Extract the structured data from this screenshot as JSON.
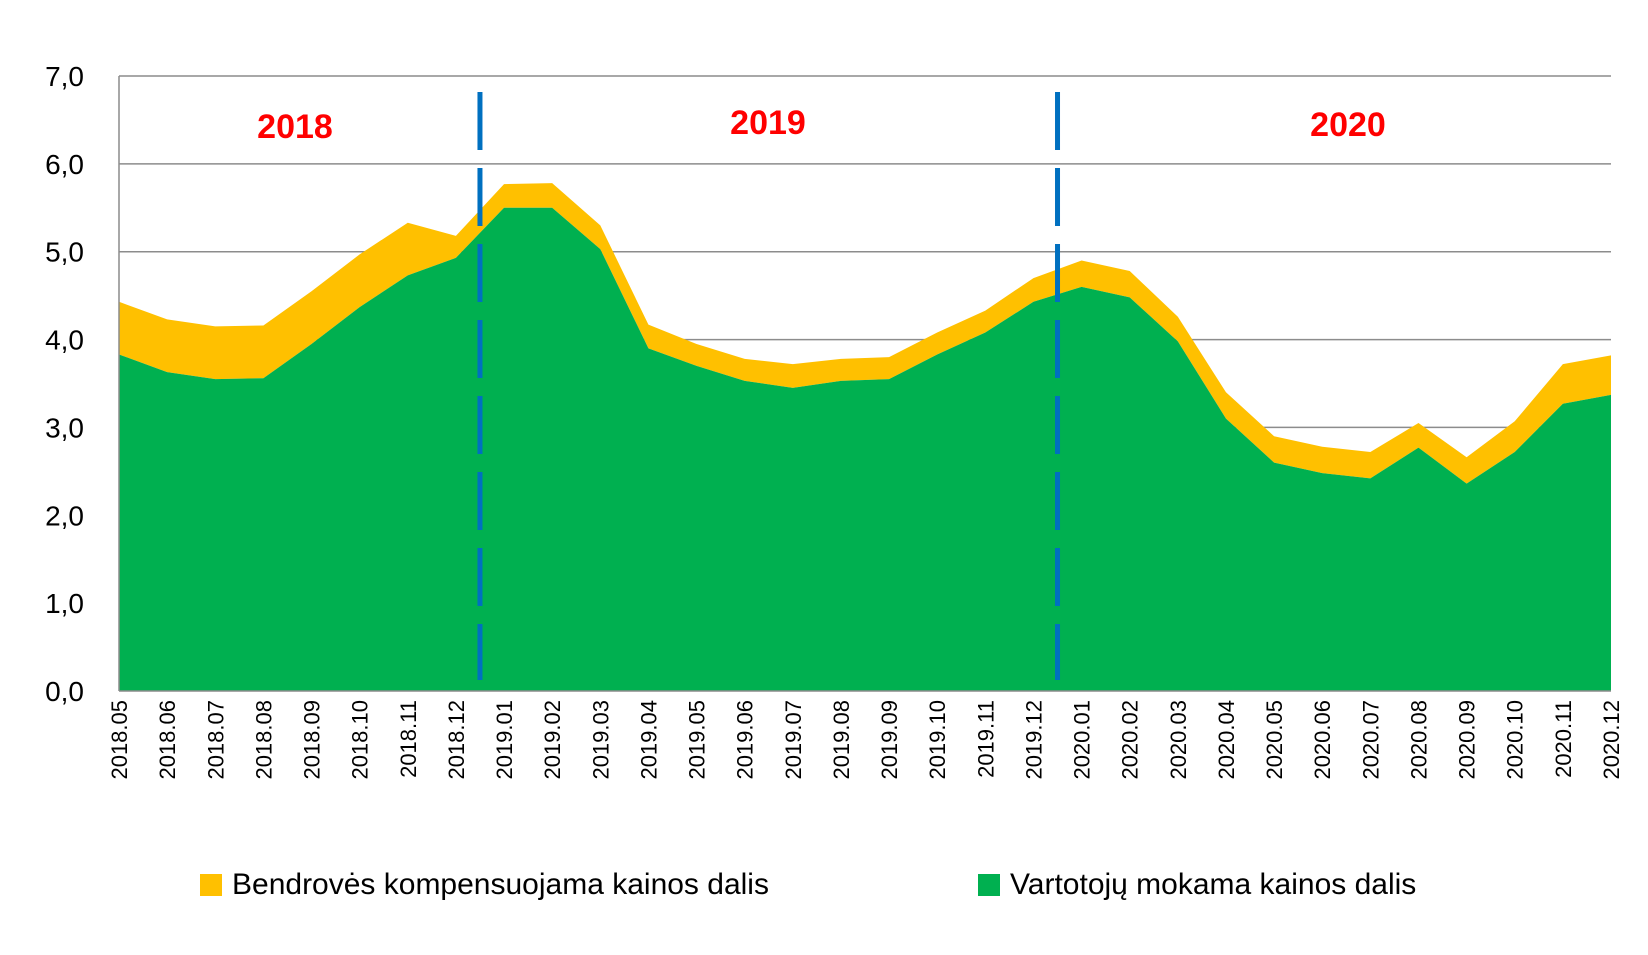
{
  "chart_data": {
    "type": "area",
    "stacked": true,
    "categories": [
      "2018.05",
      "2018.06",
      "2018.07",
      "2018.08",
      "2018.09",
      "2018.10",
      "2018.11",
      "2018.12",
      "2019.01",
      "2019.02",
      "2019.03",
      "2019.04",
      "2019.05",
      "2019.06",
      "2019.07",
      "2019.08",
      "2019.09",
      "2019.10",
      "2019.11",
      "2019.12",
      "2020.01",
      "2020.02",
      "2020.03",
      "2020.04",
      "2020.05",
      "2020.06",
      "2020.07",
      "2020.08",
      "2020.09",
      "2020.10",
      "2020.11",
      "2020.12"
    ],
    "series": [
      {
        "name": "Vartotojų mokama kainos dalis",
        "color": "#00b050",
        "values": [
          3.83,
          3.63,
          3.55,
          3.56,
          3.95,
          4.37,
          4.73,
          4.93,
          5.5,
          5.5,
          5.03,
          3.9,
          3.7,
          3.53,
          3.45,
          3.53,
          3.55,
          3.83,
          4.08,
          4.43,
          4.6,
          4.48,
          3.98,
          3.1,
          2.6,
          2.48,
          2.42,
          2.77,
          2.36,
          2.72,
          3.27,
          3.37
        ]
      },
      {
        "name": "Bendrovės kompensuojama kainos dalis",
        "color": "#ffc000",
        "values": [
          0.6,
          0.6,
          0.6,
          0.6,
          0.6,
          0.6,
          0.6,
          0.25,
          0.27,
          0.28,
          0.27,
          0.27,
          0.25,
          0.25,
          0.27,
          0.25,
          0.25,
          0.25,
          0.25,
          0.27,
          0.3,
          0.3,
          0.28,
          0.3,
          0.3,
          0.3,
          0.3,
          0.28,
          0.3,
          0.35,
          0.45,
          0.45
        ]
      }
    ],
    "ylim": [
      0,
      7
    ],
    "yticks": [
      "0,0",
      "1,0",
      "2,0",
      "3,0",
      "4,0",
      "5,0",
      "6,0",
      "7,0"
    ],
    "grid": true,
    "legend_position": "bottom",
    "legend": [
      {
        "label": "Bendrovės kompensuojama kainos dalis",
        "color": "#ffc000"
      },
      {
        "label": "Vartotojų mokama kainos dalis",
        "color": "#00b050"
      }
    ],
    "year_labels": [
      "2018",
      "2019",
      "2020"
    ],
    "year_dividers_after": [
      "2018.12",
      "2019.12"
    ],
    "divider_color": "#0070c0",
    "year_label_color": "#ff0000"
  }
}
